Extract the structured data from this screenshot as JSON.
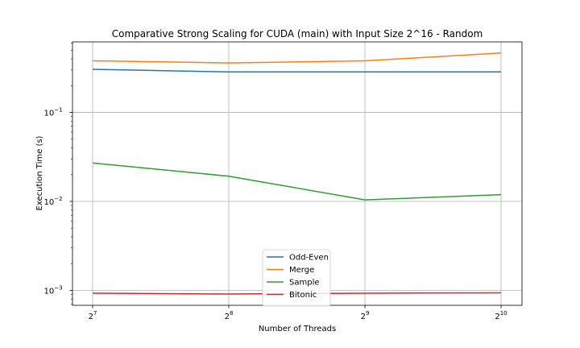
{
  "chart_data": {
    "type": "line",
    "title": "Comparative Strong Scaling for CUDA (main) with Input Size 2^16 - Random",
    "xlabel": "Number of Threads",
    "ylabel": "Execution Time (s)",
    "x": [
      128,
      256,
      512,
      1024
    ],
    "x_tick_labels": [
      {
        "base": "2",
        "exp": "7"
      },
      {
        "base": "2",
        "exp": "8"
      },
      {
        "base": "2",
        "exp": "9"
      },
      {
        "base": "2",
        "exp": "10"
      }
    ],
    "y_scale": "log",
    "ylim": [
      0.00068,
      0.62
    ],
    "y_tick_labels": [
      {
        "value": 0.001,
        "base": "10",
        "exp": "−3"
      },
      {
        "value": 0.01,
        "base": "10",
        "exp": "−2"
      },
      {
        "value": 0.1,
        "base": "10",
        "exp": "−1"
      }
    ],
    "grid": true,
    "legend_position": "lower center",
    "series": [
      {
        "name": "Odd-Even",
        "color": "#1f77b4",
        "values": [
          0.305,
          0.285,
          0.285,
          0.285
        ]
      },
      {
        "name": "Merge",
        "color": "#ff7f0e",
        "values": [
          0.38,
          0.36,
          0.38,
          0.465
        ]
      },
      {
        "name": "Sample",
        "color": "#2ca02c",
        "values": [
          0.027,
          0.0192,
          0.0104,
          0.0119
        ]
      },
      {
        "name": "Bitonic",
        "color": "#d62728",
        "values": [
          0.00093,
          0.00091,
          0.00093,
          0.00094
        ]
      }
    ]
  }
}
